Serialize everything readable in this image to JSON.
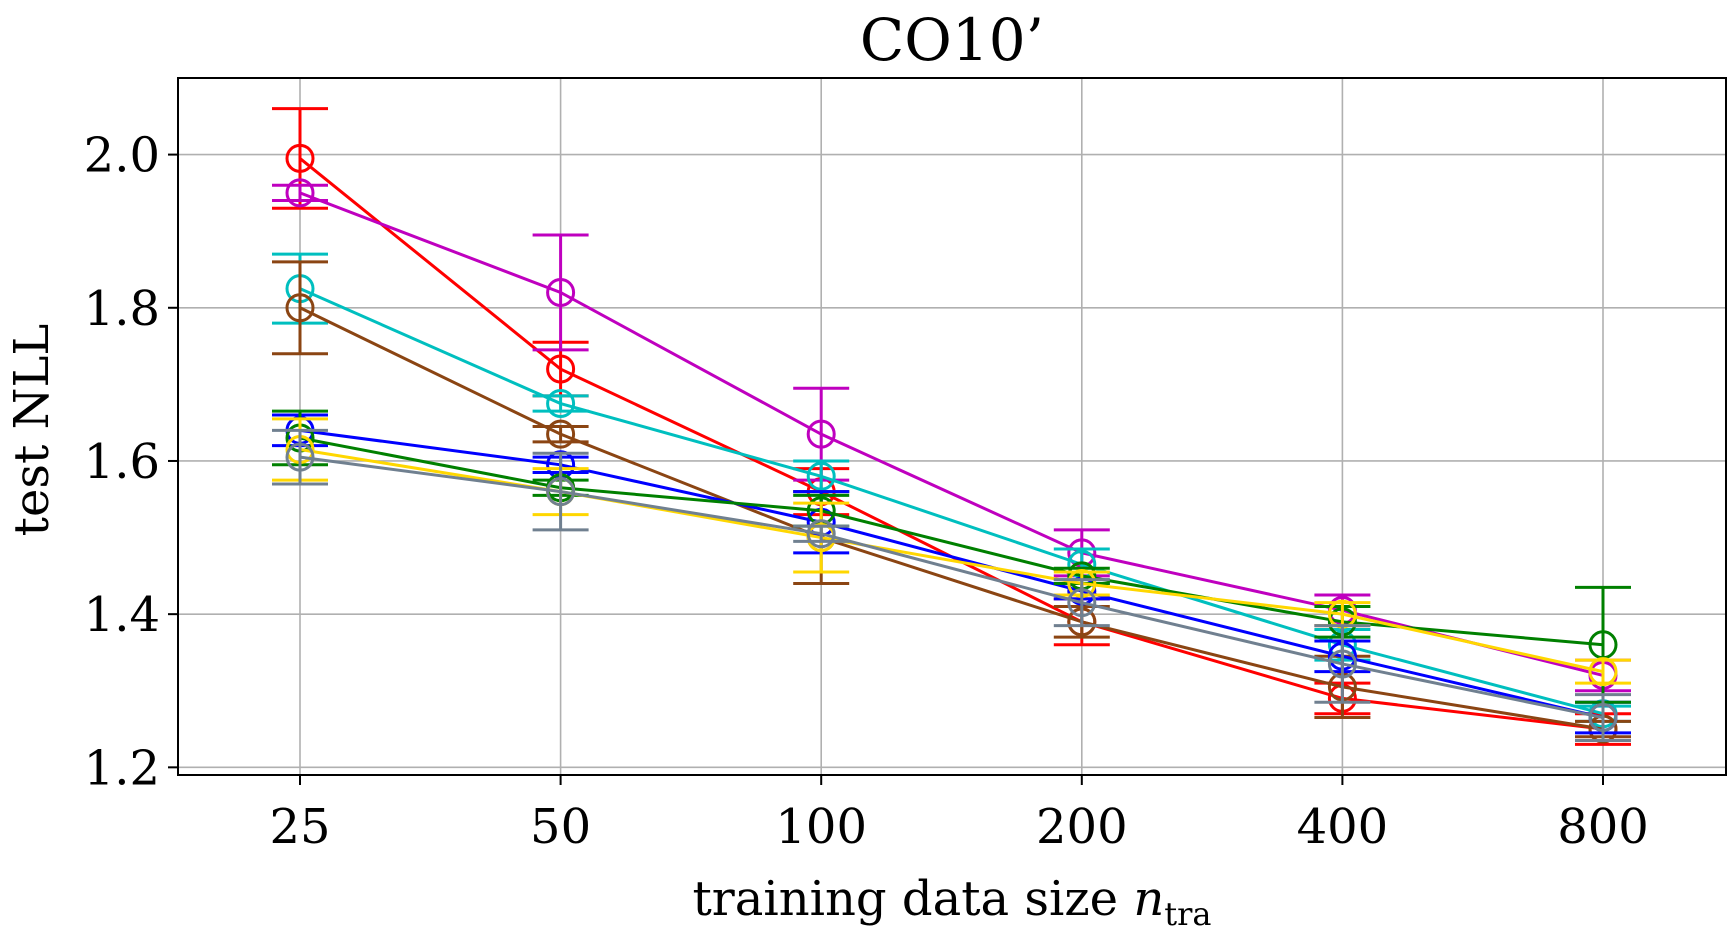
{
  "chart_data": {
    "type": "line",
    "title": "CO10’",
    "xlabel_main": "training data size ",
    "xlabel_var": "n",
    "xlabel_sub": "tra",
    "ylabel": "test NLL",
    "x_categories": [
      "25",
      "50",
      "100",
      "200",
      "400",
      "800"
    ],
    "y_ticks": [
      "1.2",
      "1.4",
      "1.6",
      "1.8",
      "2.0"
    ],
    "y_tick_values": [
      1.2,
      1.4,
      1.6,
      1.8,
      2.0
    ],
    "ylim": [
      1.19,
      2.1
    ],
    "grid": true,
    "series": [
      {
        "name": "red",
        "color": "#ff0000",
        "values": [
          1.995,
          1.72,
          1.56,
          1.39,
          1.29,
          1.25
        ],
        "errors": [
          0.065,
          0.035,
          0.03,
          0.03,
          0.02,
          0.02
        ]
      },
      {
        "name": "magenta",
        "color": "#bf00bf",
        "values": [
          1.95,
          1.82,
          1.635,
          1.48,
          1.405,
          1.32
        ],
        "errors": [
          0.01,
          0.075,
          0.06,
          0.03,
          0.02,
          0.02
        ]
      },
      {
        "name": "cyan",
        "color": "#00bfbf",
        "values": [
          1.825,
          1.675,
          1.58,
          1.465,
          1.36,
          1.27
        ],
        "errors": [
          0.045,
          0.01,
          0.02,
          0.02,
          0.02,
          0.01
        ]
      },
      {
        "name": "brown",
        "color": "#8b4513",
        "values": [
          1.8,
          1.635,
          1.5,
          1.39,
          1.305,
          1.25
        ],
        "errors": [
          0.06,
          0.01,
          0.06,
          0.02,
          0.04,
          0.01
        ]
      },
      {
        "name": "blue",
        "color": "#0000ff",
        "values": [
          1.64,
          1.595,
          1.52,
          1.43,
          1.345,
          1.265
        ],
        "errors": [
          0.02,
          0.01,
          0.04,
          0.01,
          0.02,
          0.02
        ]
      },
      {
        "name": "green",
        "color": "#008000",
        "values": [
          1.63,
          1.565,
          1.535,
          1.45,
          1.39,
          1.36
        ],
        "errors": [
          0.035,
          0.01,
          0.02,
          0.01,
          0.02,
          0.075
        ]
      },
      {
        "name": "gold",
        "color": "#ffd700",
        "values": [
          1.615,
          1.56,
          1.5,
          1.44,
          1.4,
          1.325
        ],
        "errors": [
          0.04,
          0.03,
          0.045,
          0.015,
          0.015,
          0.015
        ]
      },
      {
        "name": "gray",
        "color": "#708090",
        "values": [
          1.605,
          1.56,
          1.505,
          1.415,
          1.335,
          1.265
        ],
        "errors": [
          0.035,
          0.05,
          0.01,
          0.03,
          0.05,
          0.03
        ]
      }
    ]
  }
}
